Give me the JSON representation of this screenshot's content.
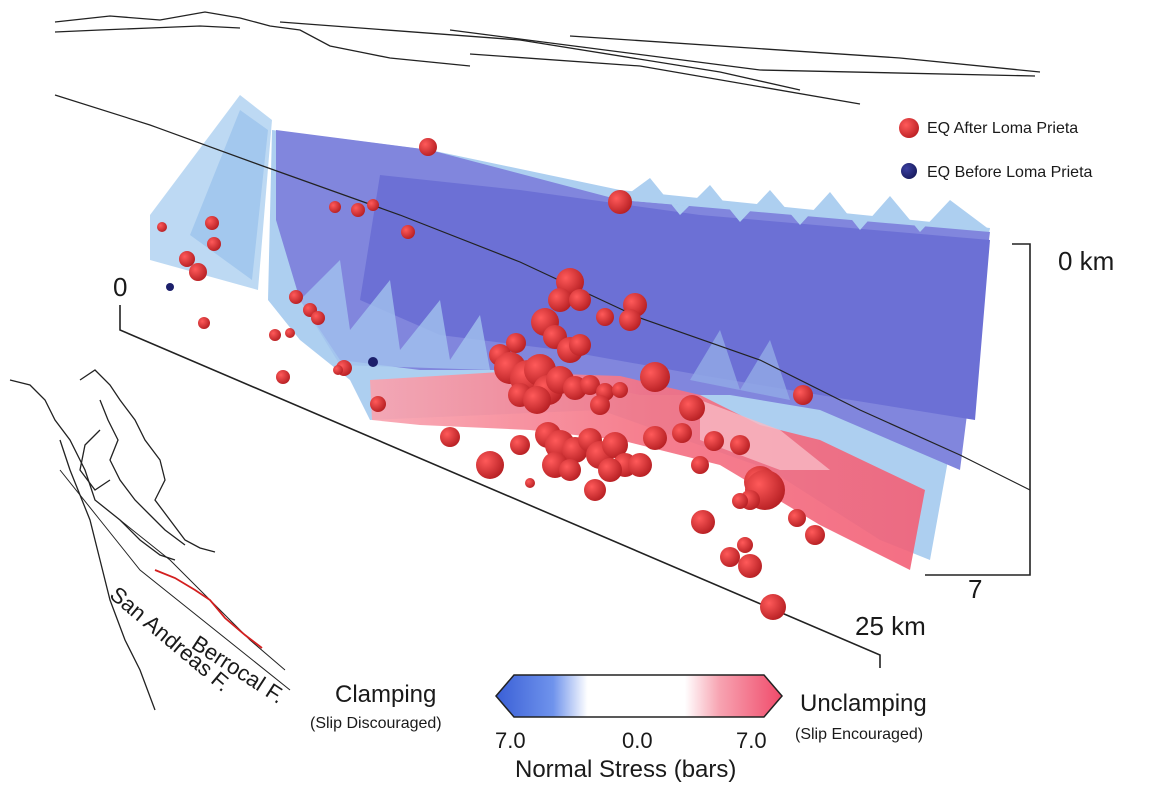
{
  "legend": {
    "after": {
      "label": "EQ After Loma Prieta",
      "color": "#c4141c"
    },
    "before": {
      "label": "EQ Before Loma Prieta",
      "color": "#1c1f6b"
    }
  },
  "depth_axis": {
    "top": "0 km",
    "bottom": "7"
  },
  "length_axis": {
    "start": "0",
    "end": "25 km"
  },
  "faults": {
    "berrocal": "Berrocal F.",
    "san_andreas": "San Andreas F."
  },
  "colorbar": {
    "left_title": "Clamping",
    "left_sub": "(Slip Discouraged)",
    "right_title": "Unclamping",
    "right_sub": "(Slip Encouraged)",
    "tick_left": "7.0",
    "tick_mid": "0.0",
    "tick_right": "7.0",
    "title": "Normal Stress (bars)",
    "colors": {
      "clamping": "#3a5fd6",
      "neutral": "#ffffff",
      "unclamping": "#f04a6a"
    }
  },
  "colors": {
    "clamping_surface": "#6d6fd8",
    "light_blue": "#a9cdf0",
    "unclamping_surface": "#f46c7e"
  }
}
